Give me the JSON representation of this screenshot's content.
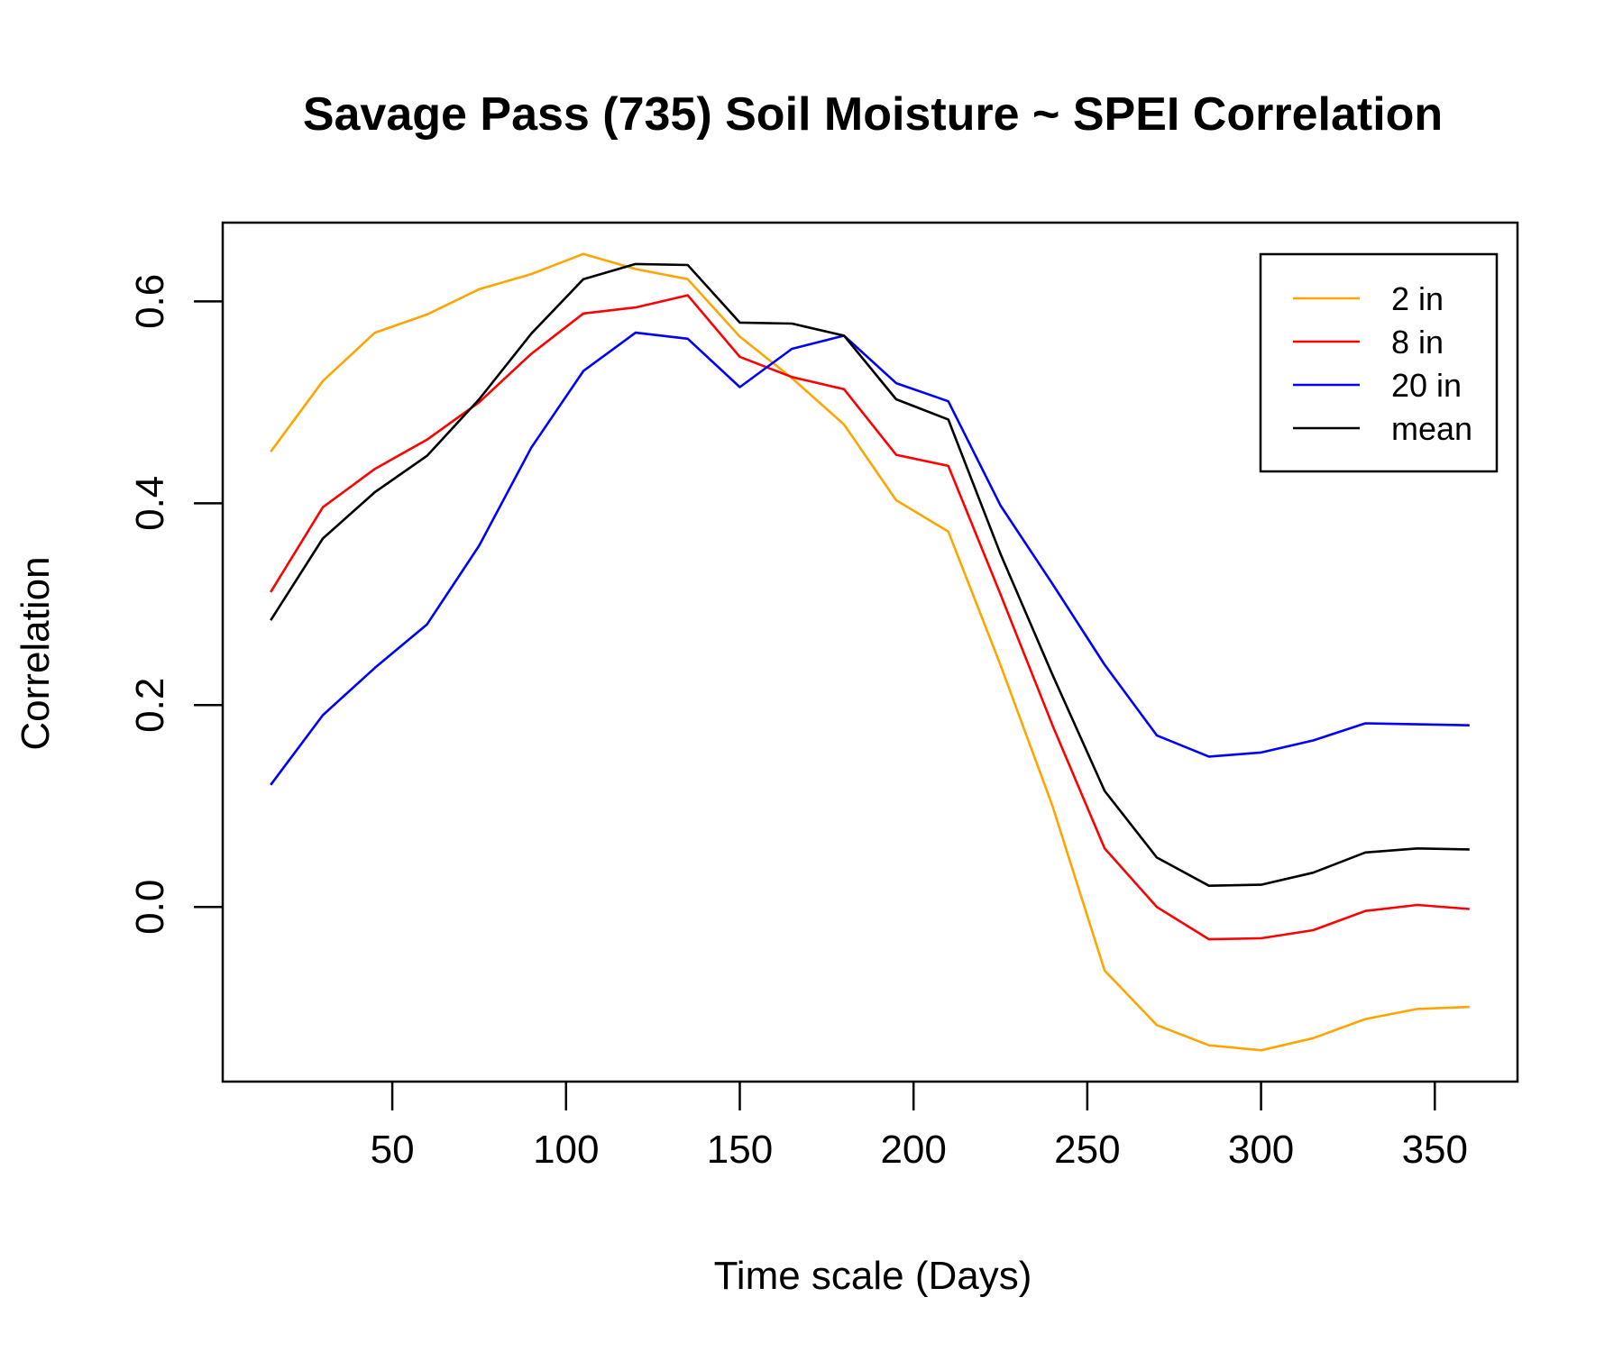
{
  "chart_data": {
    "type": "line",
    "title": "Savage Pass (735) Soil Moisture ~ SPEI Correlation",
    "xlabel": "Time scale (Days)",
    "ylabel": "Correlation",
    "xlim": [
      1.2,
      373.8
    ],
    "ylim": [
      -0.173,
      0.678
    ],
    "xticks": [
      50,
      100,
      150,
      200,
      250,
      300,
      350
    ],
    "xtick_labels": [
      "50",
      "100",
      "150",
      "200",
      "250",
      "300",
      "350"
    ],
    "yticks": [
      0.0,
      0.2,
      0.4,
      0.6
    ],
    "ytick_labels": [
      "0.0",
      "0.2",
      "0.4",
      "0.6"
    ],
    "legend_position": "top-right",
    "grid": false,
    "x": [
      15,
      30,
      45,
      60,
      75,
      90,
      105,
      120,
      135,
      150,
      165,
      180,
      195,
      210,
      225,
      240,
      255,
      270,
      285,
      300,
      315,
      330,
      345,
      360
    ],
    "series": [
      {
        "name": "2 in",
        "color": "#FFA500",
        "values": [
          0.451,
          0.521,
          0.569,
          0.587,
          0.612,
          0.627,
          0.647,
          0.632,
          0.622,
          0.565,
          0.524,
          0.478,
          0.403,
          0.372,
          0.24,
          0.1,
          -0.063,
          -0.117,
          -0.137,
          -0.142,
          -0.13,
          -0.111,
          -0.101,
          -0.099
        ]
      },
      {
        "name": "8 in",
        "color": "#FF0000",
        "values": [
          0.312,
          0.396,
          0.434,
          0.463,
          0.5,
          0.548,
          0.588,
          0.594,
          0.606,
          0.545,
          0.525,
          0.513,
          0.448,
          0.437,
          0.31,
          0.18,
          0.058,
          0.0,
          -0.032,
          -0.031,
          -0.023,
          -0.004,
          0.002,
          -0.002
        ]
      },
      {
        "name": "20 in",
        "color": "#0000FF",
        "values": [
          0.121,
          0.19,
          0.237,
          0.28,
          0.358,
          0.455,
          0.531,
          0.569,
          0.563,
          0.515,
          0.553,
          0.566,
          0.519,
          0.501,
          0.398,
          0.32,
          0.24,
          0.17,
          0.149,
          0.153,
          0.165,
          0.182,
          0.181,
          0.18
        ]
      },
      {
        "name": "mean",
        "color": "#000000",
        "values": [
          0.284,
          0.365,
          0.411,
          0.447,
          0.503,
          0.568,
          0.622,
          0.637,
          0.636,
          0.579,
          0.578,
          0.566,
          0.503,
          0.483,
          0.35,
          0.23,
          0.115,
          0.049,
          0.021,
          0.022,
          0.034,
          0.054,
          0.058,
          0.057
        ]
      }
    ]
  }
}
